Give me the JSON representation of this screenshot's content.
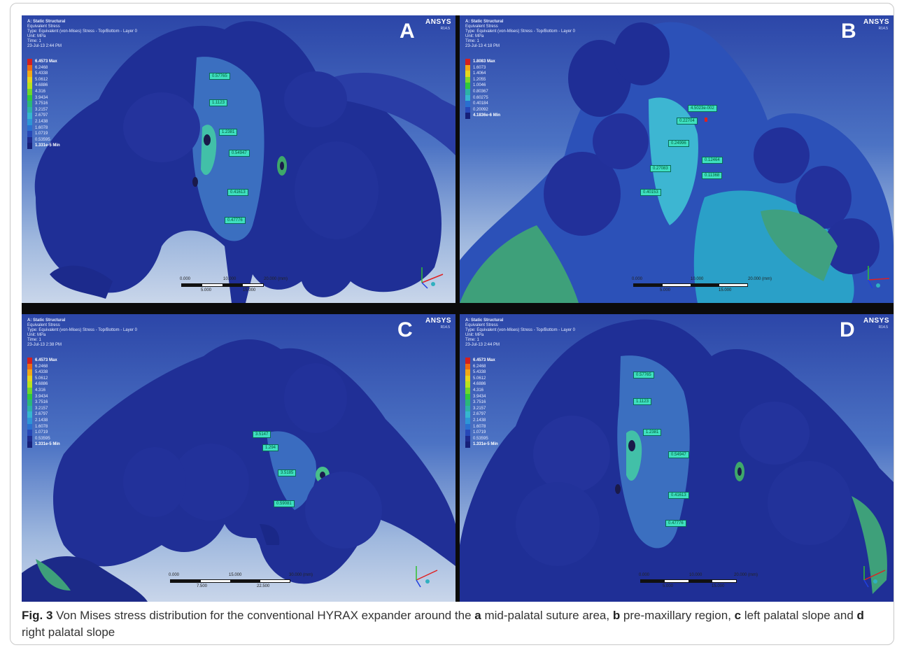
{
  "panels": [
    {
      "letter": "A",
      "ansys": "ANSYS",
      "version": "R14.5",
      "info": [
        "A: Static Structural",
        "Equivalent Stress",
        "Type: Equivalent (von-Mises) Stress - Top/Bottom - Layer 0",
        "Unit: MPa",
        "Time: 1",
        "23-Jul-13 2:44 PM"
      ],
      "legend": [
        "6.4573 Max",
        "6.2468",
        "5.4338",
        "5.0612",
        "4.6886",
        "4.316",
        "3.9434",
        "3.7516",
        "3.2157",
        "2.6797",
        "2.1438",
        "1.6078",
        "1.0719",
        "0.53595",
        "1.331e-5 Min"
      ],
      "probes": [
        "0.57765",
        "1.1123",
        "1.2381",
        "0.54947",
        "0.41613",
        "0.47776"
      ],
      "scale": {
        "top": [
          "0.000",
          "10.000",
          "20.000 (mm)"
        ],
        "bottom": [
          "5.000",
          "15.000"
        ]
      }
    },
    {
      "letter": "B",
      "ansys": "ANSYS",
      "version": "R14.5",
      "info": [
        "A: Static Structural",
        "Equivalent Stress",
        "Type: Equivalent (von-Mises) Stress - Top/Bottom - Layer 0",
        "Unit: MPa",
        "Time: 1",
        "23-Jul-13 4:18 PM"
      ],
      "legend": [
        "1.8083 Max",
        "1.6073",
        "1.4064",
        "1.2055",
        "1.0046",
        "0.80367",
        "0.60275",
        "0.40184",
        "0.20092",
        "4.1836e-6 Min"
      ],
      "probes": [
        "4.5023e-002",
        "0.22704",
        "0.24996",
        "0.12464",
        "0.27083",
        "0.11368",
        "0.40153"
      ],
      "scale": {
        "top": [
          "0.000",
          "10.000",
          "20.000 (mm)"
        ],
        "bottom": [
          "5.000",
          "15.000"
        ]
      }
    },
    {
      "letter": "C",
      "ansys": "ANSYS",
      "version": "R14.5",
      "info": [
        "A: Static Structural",
        "Equivalent Stress",
        "Type: Equivalent (von-Mises) Stress - Top/Bottom - Layer 0",
        "Unit: MPa",
        "Time: 1",
        "23-Jul-13 2:38 PM"
      ],
      "legend": [
        "6.4573 Max",
        "6.2468",
        "5.4338",
        "5.0612",
        "4.6886",
        "4.316",
        "3.9434",
        "3.7516",
        "3.2157",
        "2.6797",
        "2.1438",
        "1.6078",
        "1.0719",
        "0.53595",
        "1.331e-5 Min"
      ],
      "probes": [
        "3.5147",
        "1.294",
        "3.5185",
        "0.59081"
      ],
      "scale": {
        "top": [
          "0.000",
          "15.000",
          "30.000 (mm)"
        ],
        "bottom": [
          "7.500",
          "22.500"
        ]
      }
    },
    {
      "letter": "D",
      "ansys": "ANSYS",
      "version": "R14.5",
      "info": [
        "A: Static Structural",
        "Equivalent Stress",
        "Type: Equivalent (von-Mises) Stress - Top/Bottom - Layer 0",
        "Unit: MPa",
        "Time: 1",
        "23-Jul-13 2:44 PM"
      ],
      "legend": [
        "6.4573 Max",
        "6.2468",
        "5.4338",
        "5.0612",
        "4.6886",
        "4.316",
        "3.9434",
        "3.7516",
        "3.2157",
        "2.6797",
        "2.1438",
        "1.6078",
        "1.0719",
        "0.53595",
        "1.331e-5 Min"
      ],
      "probes": [
        "0.57765",
        "1.1123",
        "1.2381",
        "0.54947",
        "0.41613",
        "0.47776"
      ],
      "scale": {
        "top": [
          "0.000",
          "10.000",
          "20.000 (mm)"
        ],
        "bottom": [
          "5.000",
          "15.000"
        ]
      }
    }
  ],
  "legend_colors": [
    "#d41f1f",
    "#ef6a12",
    "#f2a817",
    "#e6d51c",
    "#b9e21e",
    "#6fd62a",
    "#2ec83d",
    "#2ab77a",
    "#2db2a6",
    "#36b6d0",
    "#2d96d6",
    "#2a6fd0",
    "#2748b8",
    "#1e2a8e",
    "#16207a"
  ],
  "legend_colors_short": [
    "#d41f1f",
    "#f2a817",
    "#e6d51c",
    "#7fd62a",
    "#2ec83d",
    "#2db2a6",
    "#36b6d0",
    "#2a6fd0",
    "#2748b8",
    "#16207a"
  ],
  "caption": {
    "prefix": "Fig. 3",
    "t1": " Von Mises stress distribution for the conventional HYRAX expander around the ",
    "a": "a",
    "t2": " mid-palatal suture area, ",
    "b": "b",
    "t3": " pre-maxillary region, ",
    "c": "c",
    "t4": " left palatal slope and ",
    "d": "d",
    "t5": " right palatal slope"
  }
}
